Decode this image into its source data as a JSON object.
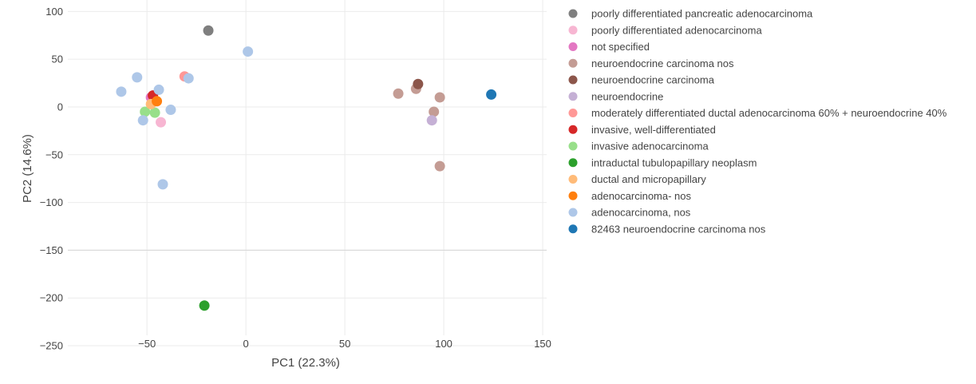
{
  "chart_data": {
    "type": "scatter",
    "xlabel": "PC1 (22.3%)",
    "ylabel": "PC2 (14.6%)",
    "xlim": [
      -90,
      152
    ],
    "ylim": [
      -250,
      112
    ],
    "xticks": [
      -50,
      0,
      50,
      100,
      150
    ],
    "yticks": [
      100,
      50,
      0,
      -50,
      -100,
      -150,
      -200,
      -250
    ],
    "xtick_labels": [
      "−50",
      "0",
      "50",
      "100",
      "150"
    ],
    "ytick_labels": [
      "100",
      "50",
      "0",
      "−50",
      "−100",
      "−150",
      "−200",
      "−250"
    ],
    "grid": true,
    "legend_position": "right",
    "series": [
      {
        "name": "poorly differentiated pancreatic adenocarcinoma",
        "color": "#7f7f7f",
        "points": [
          [
            -19,
            80
          ]
        ]
      },
      {
        "name": "poorly differentiated adenocarcinoma",
        "color": "#f7b6d2",
        "points": [
          [
            -43,
            -16
          ]
        ]
      },
      {
        "name": "not specified",
        "color": "#e377c2",
        "points": [
          [
            -48,
            10
          ]
        ]
      },
      {
        "name": "neuroendocrine carcinoma nos",
        "color": "#c49c94",
        "points": [
          [
            77,
            14
          ],
          [
            86,
            19
          ],
          [
            98,
            10
          ],
          [
            95,
            -5
          ],
          [
            98,
            -62
          ]
        ]
      },
      {
        "name": "neuroendocrine carcinoma",
        "color": "#8c564b",
        "points": [
          [
            87,
            24
          ]
        ]
      },
      {
        "name": "neuroendocrine",
        "color": "#c5b0d5",
        "points": [
          [
            94,
            -14
          ]
        ]
      },
      {
        "name": "moderately differentiated ductal adenocarcinoma 60% + neuroendocrine 40%",
        "color": "#ff9896",
        "points": [
          [
            -31,
            32
          ]
        ]
      },
      {
        "name": "invasive, well-differentiated",
        "color": "#d62728",
        "points": [
          [
            -47,
            12
          ]
        ]
      },
      {
        "name": "invasive adenocarcinoma",
        "color": "#98df8a",
        "points": [
          [
            -51,
            -5
          ],
          [
            -46,
            -6
          ]
        ]
      },
      {
        "name": "intraductal tubulopapillary neoplasm",
        "color": "#2ca02c",
        "points": [
          [
            -21,
            -208
          ]
        ]
      },
      {
        "name": "ductal and micropapillary",
        "color": "#ffbb78",
        "points": [
          [
            -48,
            3
          ]
        ]
      },
      {
        "name": "adenocarcinoma- nos",
        "color": "#ff7f0e",
        "points": [
          [
            -45,
            6
          ]
        ]
      },
      {
        "name": "adenocarcinoma, nos",
        "color": "#aec7e8",
        "points": [
          [
            -63,
            16
          ],
          [
            -55,
            31
          ],
          [
            -44,
            18
          ],
          [
            -38,
            -3
          ],
          [
            -29,
            30
          ],
          [
            -52,
            -14
          ],
          [
            1,
            58
          ],
          [
            -42,
            -81
          ]
        ]
      },
      {
        "name": "82463 neuroendocrine carcinoma nos",
        "color": "#1f77b4",
        "points": [
          [
            124,
            13
          ]
        ]
      }
    ]
  }
}
